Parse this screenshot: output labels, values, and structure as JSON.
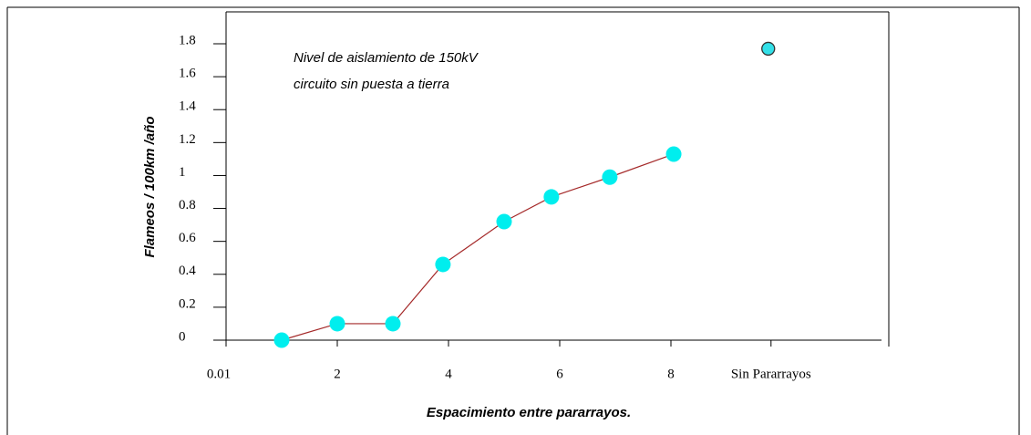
{
  "chart_data": {
    "type": "scatter",
    "annotation": [
      "Nivel de aislamiento de 150kV",
      "circuito sin puesta a tierra"
    ],
    "xlabel": "Espacimiento entre pararrayos.",
    "ylabel": "Flameos / 100km /año",
    "xlim": [
      0,
      12
    ],
    "ylim": [
      0,
      1.8
    ],
    "xticks": [
      {
        "value": 0,
        "label": "0.01"
      },
      2,
      4,
      6,
      8,
      {
        "value": 9.8,
        "label": "Sin Pararrayos"
      }
    ],
    "yticks": [
      0,
      0.2,
      0.4,
      0.6,
      0.8,
      1,
      1.2,
      1.4,
      1.6,
      1.8
    ],
    "series": [
      {
        "color": "#00eeee",
        "line_color": "#a52a2a",
        "connected": true,
        "x": [
          1,
          2,
          3,
          3.9,
          5,
          5.85,
          6.9,
          8.05
        ],
        "values": [
          0,
          0.1,
          0.1,
          0.46,
          0.72,
          0.87,
          0.99,
          1.13
        ]
      },
      {
        "color": "#33e0e8",
        "outline": "#333333",
        "connected": false,
        "x": [
          9.75
        ],
        "values": [
          1.77
        ]
      }
    ]
  }
}
